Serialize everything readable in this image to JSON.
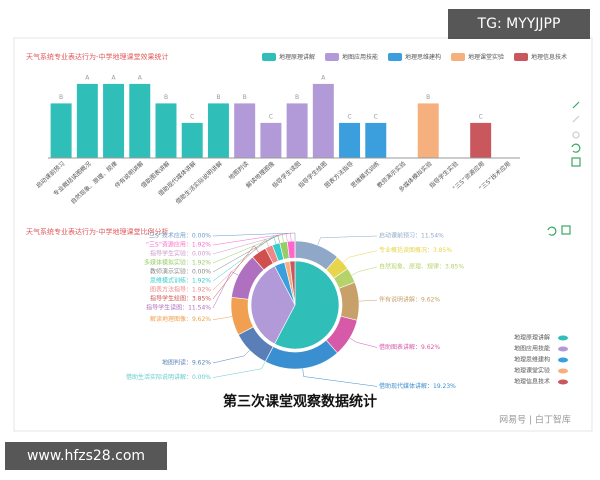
{
  "watermark_top": "TG: MYYJJPP",
  "watermark_bottom": "www.hfzs28.com",
  "caption": "第三次课堂观察数据统计",
  "source": "网易号 | 白丁智库",
  "chart_data": [
    {
      "type": "bar",
      "title": "天气系统专业表达行为-中学地理课堂效果统计",
      "categories": [
        "启动课前预习",
        "专业概括读图概况",
        "自然现象、原理、规律",
        "伴有说明讲解",
        "借助图表讲解",
        "借助现代媒体讲解",
        "借助生活实际说明讲解",
        "地图判读",
        "解读地理图像",
        "指导学生读图",
        "指导学生绘图",
        "图表方法指导",
        "思维模式训练",
        "教师演示实验",
        "多媒体模拟实验",
        "指导学生实验",
        "“三S”资源应用",
        "“三S”技术应用"
      ],
      "ylim": [
        0,
        4
      ],
      "series": [
        {
          "name": "地理原理讲解",
          "color": "#2fbfb8",
          "values": [
            2.8,
            3.8,
            3.8,
            3.8,
            2.8,
            1.8,
            2.8,
            null,
            null,
            null,
            null,
            null,
            null,
            null,
            null,
            null,
            null,
            null
          ],
          "value_labels": [
            "B",
            "A",
            "A",
            "A",
            "B",
            "C",
            "B",
            null,
            null,
            null,
            null,
            null,
            null,
            null,
            null,
            null,
            null,
            null
          ]
        },
        {
          "name": "地图应用技能",
          "color": "#b29ad8",
          "values": [
            null,
            null,
            null,
            null,
            null,
            null,
            null,
            2.8,
            1.8,
            2.8,
            3.8,
            null,
            null,
            null,
            null,
            null,
            null,
            null
          ],
          "value_labels": [
            null,
            null,
            null,
            null,
            null,
            null,
            null,
            "B",
            "C",
            "B",
            "A",
            null,
            null,
            null,
            null,
            null,
            null,
            null
          ]
        },
        {
          "name": "地理思维建构",
          "color": "#3a9fdc",
          "values": [
            null,
            null,
            null,
            null,
            null,
            null,
            null,
            null,
            null,
            null,
            null,
            1.8,
            1.8,
            null,
            null,
            null,
            null,
            null
          ],
          "value_labels": [
            null,
            null,
            null,
            null,
            null,
            null,
            null,
            null,
            null,
            null,
            null,
            "C",
            "C",
            null,
            null,
            null,
            null,
            null
          ]
        },
        {
          "name": "地理课堂实验",
          "color": "#f6b07e",
          "values": [
            null,
            null,
            null,
            null,
            null,
            null,
            null,
            null,
            null,
            null,
            null,
            null,
            null,
            null,
            2.8,
            null,
            null,
            null
          ],
          "value_labels": [
            null,
            null,
            null,
            null,
            null,
            null,
            null,
            null,
            null,
            null,
            null,
            null,
            null,
            null,
            "B",
            null,
            null,
            null
          ]
        },
        {
          "name": "地理信息技术",
          "color": "#c9585e",
          "values": [
            null,
            null,
            null,
            null,
            null,
            null,
            null,
            null,
            null,
            null,
            null,
            null,
            null,
            null,
            null,
            null,
            1.8,
            null
          ],
          "value_labels": [
            null,
            null,
            null,
            null,
            null,
            null,
            null,
            null,
            null,
            null,
            null,
            null,
            null,
            null,
            null,
            null,
            "C",
            null
          ]
        }
      ]
    },
    {
      "type": "pie",
      "title": "天气系统专业表达行为-中学地理课堂比例分析",
      "categories": [
        "启动课前预习",
        "专业概括读图概况",
        "自然现象、原理、规律",
        "伴有说明讲解",
        "借助图表讲解",
        "借助现代媒体讲解",
        "借助生活实际说明讲解",
        "地图判读",
        "解读地理图像",
        "指导学生读图",
        "指导学生绘图",
        "图表方法指导",
        "思维模式训练",
        "教师演示实验",
        "多媒体模拟实验",
        "指导学生实验",
        "“三S”资源应用",
        "“三S”技术应用"
      ],
      "values": [
        11.54,
        3.85,
        3.85,
        9.62,
        9.62,
        19.23,
        0.0,
        9.62,
        9.62,
        11.54,
        3.85,
        1.92,
        1.92,
        0.0,
        1.92,
        0.0,
        1.92,
        0.0
      ],
      "labels": [
        "启动课前预习：11.54%",
        "专业概括读图概况：3.85%",
        "自然现象、原理、规律：3.85%",
        "伴有说明讲解：9.62%",
        "借助图表讲解：9.62%",
        "借助现代媒体讲解：19.23%",
        "借助生活实际说明讲解：0.00%",
        "地图判读：9.62%",
        "解读地理图像：9.62%",
        "指导学生读图：11.54%",
        "指导学生绘图：3.85%",
        "图表方法指导：1.92%",
        "思维模式训练：1.92%",
        "教师演示实验：0.00%",
        "多媒体模拟实验：1.92%",
        "指导学生实验：0.00%",
        "“三S”资源应用：1.92%",
        "“三S”技术应用：0.00%"
      ],
      "colors": [
        "#8fa8c8",
        "#e8d44d",
        "#b5d36b",
        "#c8a06a",
        "#d65aa8",
        "#3a8fd0",
        "#66cccc",
        "#5a7fb8",
        "#f0a050",
        "#b070c0",
        "#d05050",
        "#ee8888",
        "#33cccc",
        "#888888",
        "#99cc66",
        "#cc99cc",
        "#ff66cc",
        "#6699cc"
      ],
      "groups": {
        "names": [
          "地理原理讲解",
          "地图应用技能",
          "地理思维建构",
          "地理课堂实验",
          "地理信息技术"
        ],
        "values": [
          57.71,
          34.63,
          3.84,
          1.92,
          1.92
        ],
        "colors": [
          "#2fbfb8",
          "#b29ad8",
          "#3a9fdc",
          "#f6b07e",
          "#c9585e"
        ]
      }
    }
  ]
}
